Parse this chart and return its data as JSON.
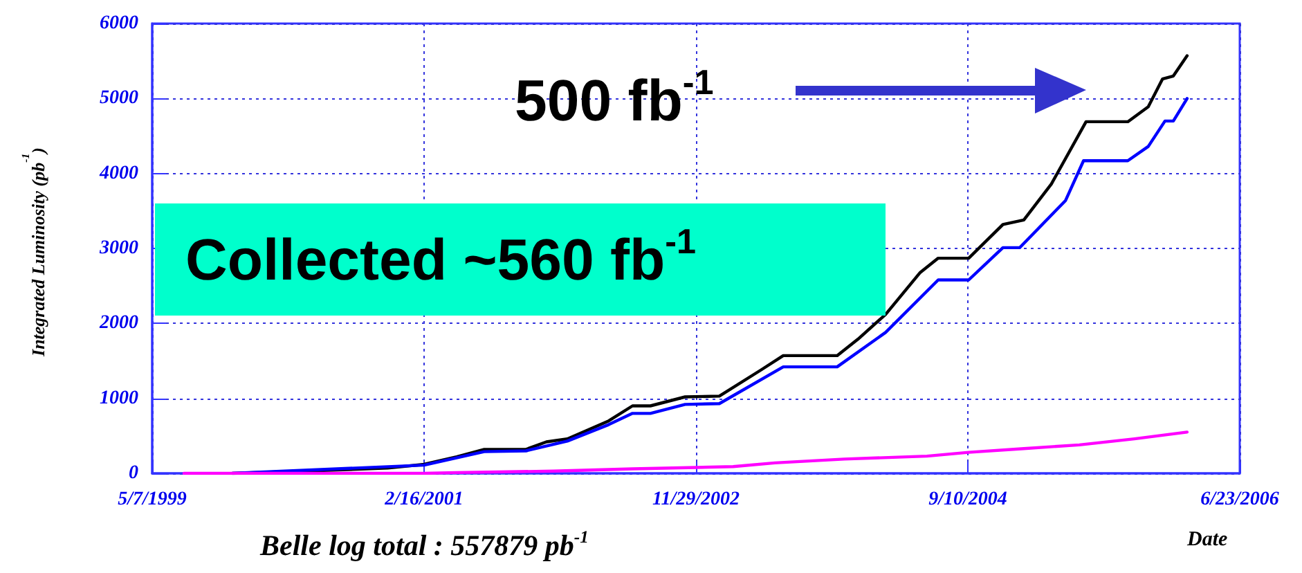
{
  "chart_data": {
    "type": "line",
    "xlabel": "Date",
    "ylabel": "Integrated Luminosity (pb$^{-1}$)",
    "annotations": [
      "500 fb$^{-1}$",
      "Collected ~560 fb$^{-1}$",
      "Belle log total : 557879 pb$^{-1}$"
    ],
    "series": [
      {
        "color": "#000000",
        "x": [
          "1999-11-15",
          "2000-05-05",
          "2000-11-21",
          "2001-02-16",
          "2001-05-05",
          "2001-07-10",
          "2001-10-18",
          "2001-12-06",
          "2002-01-25",
          "2002-05-04",
          "2002-06-30",
          "2002-08-12",
          "2002-11-03",
          "2003-01-24",
          "2003-05-04",
          "2003-06-26",
          "2003-11-02",
          "2003-12-22",
          "2004-02-26",
          "2004-05-19",
          "2004-07-01",
          "2004-09-12",
          "2004-12-03",
          "2005-01-22",
          "2005-03-29",
          "2005-06-20",
          "2005-09-28",
          "2005-11-16",
          "2005-12-20",
          "2006-01-15",
          "2006-02-17"
        ],
        "values": [
          0,
          30,
          70,
          120,
          220,
          320,
          320,
          420,
          460,
          700,
          900,
          900,
          1020,
          1030,
          1380,
          1570,
          1570,
          1790,
          2120,
          2680,
          2870,
          2870,
          3320,
          3380,
          3860,
          4690,
          4690,
          4890,
          5260,
          5300,
          5570
        ]
      },
      {
        "color": "#0000ff",
        "x": [
          "1999-11-15",
          "2001-02-16",
          "2001-07-10",
          "2001-10-18",
          "2002-01-25",
          "2002-05-04",
          "2002-06-30",
          "2002-08-12",
          "2002-11-03",
          "2003-01-24",
          "2003-06-26",
          "2003-11-02",
          "2004-02-26",
          "2004-07-01",
          "2004-09-12",
          "2004-12-03",
          "2005-01-12",
          "2005-05-02",
          "2005-06-14",
          "2005-09-28",
          "2005-11-16",
          "2005-12-26",
          "2006-01-15",
          "2006-02-17"
        ],
        "values": [
          0,
          110,
          290,
          300,
          430,
          650,
          800,
          800,
          920,
          930,
          1420,
          1420,
          1880,
          2580,
          2580,
          3010,
          3010,
          3640,
          4170,
          4170,
          4360,
          4700,
          4700,
          5000
        ]
      },
      {
        "color": "#ff00ff",
        "x": [
          "1999-07-22",
          "2001-02-16",
          "2001-05-05",
          "2001-12-23",
          "2002-06-30",
          "2003-02-26",
          "2003-06-06",
          "2003-11-19",
          "2004-06-04",
          "2004-09-12",
          "2005-01-22",
          "2005-06-04",
          "2005-10-14",
          "2006-02-17"
        ],
        "values": [
          0,
          0,
          10,
          30,
          60,
          90,
          140,
          190,
          230,
          280,
          330,
          380,
          460,
          550
        ]
      }
    ],
    "xlim": [
      "1999-05-07",
      "2006-06-23"
    ],
    "xticks": [
      {
        "value": "1999-05-07",
        "label": "5/7/1999"
      },
      {
        "value": "2001-02-16",
        "label": "2/16/2001"
      },
      {
        "value": "2002-11-29",
        "label": "11/29/2002"
      },
      {
        "value": "2004-09-10",
        "label": "9/10/2004"
      },
      {
        "value": "2006-06-23",
        "label": "6/23/2006"
      }
    ],
    "ylim": [
      0,
      6000
    ],
    "yticks": [
      0,
      1000,
      2000,
      3000,
      4000,
      5000,
      6000
    ],
    "grid": true,
    "marker": "none",
    "line_style": "solid"
  }
}
